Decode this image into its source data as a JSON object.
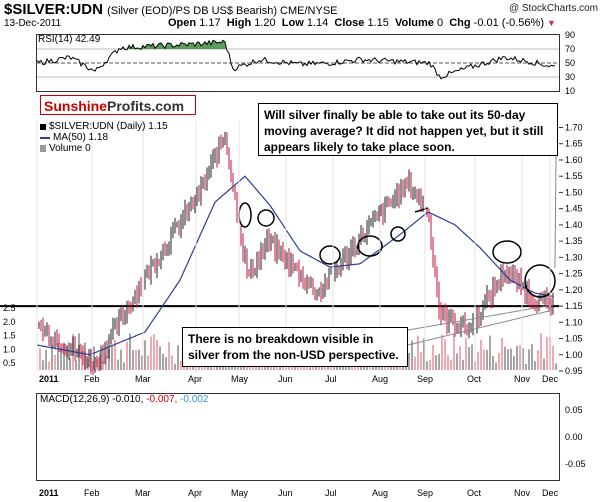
{
  "header": {
    "title_main": "$SILVER:UDN",
    "title_sub": "(Silver (EOD)/PS DB US$ Bearish) CME/NYSE",
    "date": "13-Dec-2011",
    "open_label": "Open",
    "open": "1.17",
    "high_label": "High",
    "high": "1.20",
    "low_label": "Low",
    "low": "1.14",
    "close_label": "Close",
    "close": "1.15",
    "volume_label": "Volume",
    "volume": "0",
    "chg_label": "Chg",
    "chg": "-0.01 (-0.56%)",
    "copyright": "@ StockCharts.com"
  },
  "logo": {
    "part1": "Sunshine",
    "part2": "Profits.com"
  },
  "annotations": {
    "top": "Will silver finally be able to take out its 50-day moving average? It did not happen yet, but it still appears likely to take place soon.",
    "bottom": "There is no breakdown visible in silver from the non-USD perspective."
  },
  "legend": {
    "price": "$SILVER:UDN (Daily) 1.15",
    "ma": "MA(50) 1.18",
    "volume": "Volume 0"
  },
  "rsi": {
    "label": "RSI(14) 42.49",
    "ticks": [
      "90",
      "70",
      "50",
      "30",
      "10"
    ]
  },
  "macd": {
    "label_prefix": "MACD(12,26,9)",
    "v1": "-0.010,",
    "v2": "-0.007,",
    "v3": "-0.002",
    "ticks": [
      "0.05",
      "0.00",
      "-0.05"
    ]
  },
  "chart_data": {
    "type": "line",
    "price_axis_right": [
      "1.70",
      "1.65",
      "1.60",
      "1.55",
      "1.50",
      "1.45",
      "1.40",
      "1.35",
      "1.30",
      "1.25",
      "1.20",
      "1.15",
      "1.10",
      "1.05",
      "1.00",
      "0.95"
    ],
    "volume_axis_left": [
      "2.5",
      "2.0",
      "1.5",
      "1.0",
      "0.5"
    ],
    "x_labels": [
      "2011",
      "Feb",
      "Mar",
      "Apr",
      "May",
      "Jun",
      "Jul",
      "Aug",
      "Sep",
      "Oct",
      "Nov",
      "Dec"
    ],
    "series": [
      {
        "name": "$SILVER:UDN",
        "x": [
          "Jan",
          "Feb",
          "Mar",
          "Apr",
          "Apr",
          "May",
          "May",
          "Jun",
          "Jul",
          "Aug",
          "Sep",
          "Sep",
          "Oct",
          "Oct",
          "Nov",
          "Dec",
          "Dec"
        ],
        "values": [
          1.09,
          0.97,
          1.24,
          1.5,
          1.68,
          1.38,
          1.24,
          1.35,
          1.19,
          1.39,
          1.53,
          1.44,
          1.12,
          1.08,
          1.26,
          1.17,
          1.15
        ]
      },
      {
        "name": "MA(50)",
        "values": [
          1.03,
          1.0,
          1.07,
          1.23,
          1.47,
          1.55,
          1.46,
          1.32,
          1.27,
          1.28,
          1.37,
          1.44,
          1.4,
          1.33,
          1.23,
          1.19,
          1.18
        ]
      }
    ],
    "horizontal_level": 1.15,
    "price_ylim": [
      0.95,
      1.72
    ],
    "rsi_ylim": [
      10,
      90
    ],
    "macd_ylim": [
      -0.08,
      0.08
    ],
    "colors": {
      "price_up": "#222222",
      "price_down": "#c3103a",
      "ma": "#2c3c9a",
      "volume": "#9b9b9b",
      "volume_down": "#f2a0a8",
      "macd_line": "#000000",
      "signal_line": "#d00000",
      "histogram": "#3d8fd6",
      "rsi_fill": "#3f8c3f"
    }
  }
}
